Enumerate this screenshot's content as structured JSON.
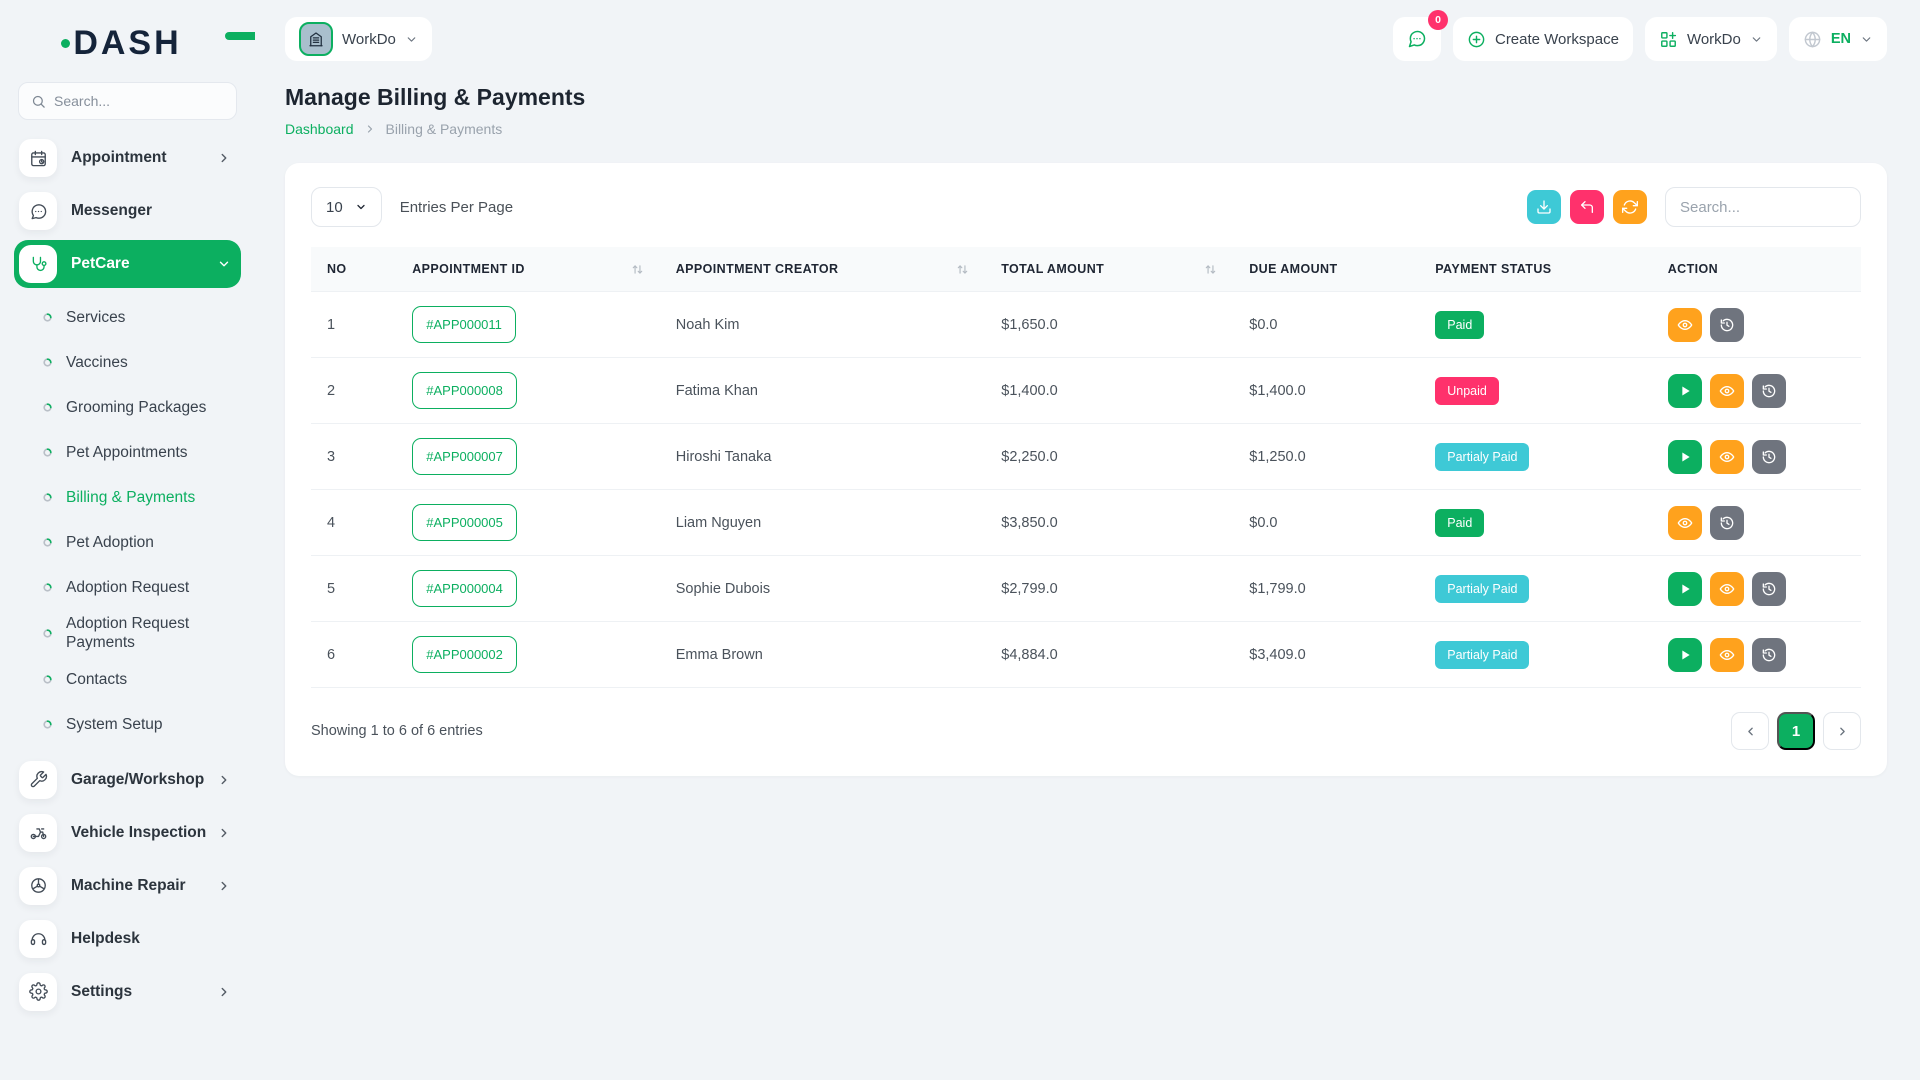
{
  "brand": {
    "logo": "DASH"
  },
  "topbar": {
    "workspace_name": "WorkDo",
    "messages_badge": "0",
    "create_workspace_label": "Create Workspace",
    "workspace_menu_label": "WorkDo",
    "language": "EN"
  },
  "sidebar": {
    "search_placeholder": "Search...",
    "menu": [
      {
        "label": "Appointment",
        "icon": "calendar",
        "chevron": "right"
      },
      {
        "label": "Messenger",
        "icon": "messenger"
      },
      {
        "label": "PetCare",
        "icon": "stethoscope",
        "chevron": "down",
        "active": true,
        "children": [
          "Services",
          "Vaccines",
          "Grooming Packages",
          "Pet Appointments",
          "Billing & Payments",
          "Pet Adoption",
          "Adoption Request",
          "Adoption Request Payments",
          "Contacts",
          "System Setup"
        ],
        "active_child": "Billing & Payments"
      },
      {
        "label": "Garage/Workshop",
        "icon": "wrench",
        "chevron": "right"
      },
      {
        "label": "Vehicle Inspection",
        "icon": "motorbike",
        "chevron": "right"
      },
      {
        "label": "Machine Repair",
        "icon": "machine",
        "chevron": "right"
      },
      {
        "label": "Helpdesk",
        "icon": "headset"
      },
      {
        "label": "Settings",
        "icon": "gear",
        "chevron": "right"
      }
    ]
  },
  "page": {
    "title": "Manage Billing & Payments",
    "breadcrumb_home": "Dashboard",
    "breadcrumb_current": "Billing & Payments"
  },
  "toolbar": {
    "entries_value": "10",
    "entries_label": "Entries Per Page",
    "search_placeholder": "Search..."
  },
  "table": {
    "columns": [
      "NO",
      "APPOINTMENT ID",
      "APPOINTMENT CREATOR",
      "TOTAL AMOUNT",
      "DUE AMOUNT",
      "PAYMENT STATUS",
      "ACTION"
    ],
    "sortable_column_indexes": [
      1,
      2,
      3
    ],
    "rows": [
      {
        "no": "1",
        "id": "#APP000011",
        "creator": "Noah Kim",
        "total": "$1,650.0",
        "due": "$0.0",
        "status": "Paid",
        "status_type": "paid",
        "actions": [
          "eye",
          "history"
        ]
      },
      {
        "no": "2",
        "id": "#APP000008",
        "creator": "Fatima Khan",
        "total": "$1,400.0",
        "due": "$1,400.0",
        "status": "Unpaid",
        "status_type": "unpaid",
        "actions": [
          "play",
          "eye",
          "history"
        ]
      },
      {
        "no": "3",
        "id": "#APP000007",
        "creator": "Hiroshi Tanaka",
        "total": "$2,250.0",
        "due": "$1,250.0",
        "status": "Partialy Paid",
        "status_type": "partial",
        "actions": [
          "play",
          "eye",
          "history"
        ]
      },
      {
        "no": "4",
        "id": "#APP000005",
        "creator": "Liam Nguyen",
        "total": "$3,850.0",
        "due": "$0.0",
        "status": "Paid",
        "status_type": "paid",
        "actions": [
          "eye",
          "history"
        ]
      },
      {
        "no": "5",
        "id": "#APP000004",
        "creator": "Sophie Dubois",
        "total": "$2,799.0",
        "due": "$1,799.0",
        "status": "Partialy Paid",
        "status_type": "partial",
        "actions": [
          "play",
          "eye",
          "history"
        ]
      },
      {
        "no": "6",
        "id": "#APP000002",
        "creator": "Emma Brown",
        "total": "$4,884.0",
        "due": "$3,409.0",
        "status": "Partialy Paid",
        "status_type": "partial",
        "actions": [
          "play",
          "eye",
          "history"
        ]
      }
    ],
    "footer": {
      "showing": "Showing 1 to 6 of 6 entries",
      "current_page": "1"
    }
  },
  "colors": {
    "primary_green": "#0CAF60",
    "paid_badge": "#0CAF60",
    "unpaid_badge": "#FF316C",
    "partial_badge": "#3EC9D6",
    "view_button": "#FFA21D",
    "history_button": "#6F747E",
    "download_button": "#3EC9D6"
  }
}
